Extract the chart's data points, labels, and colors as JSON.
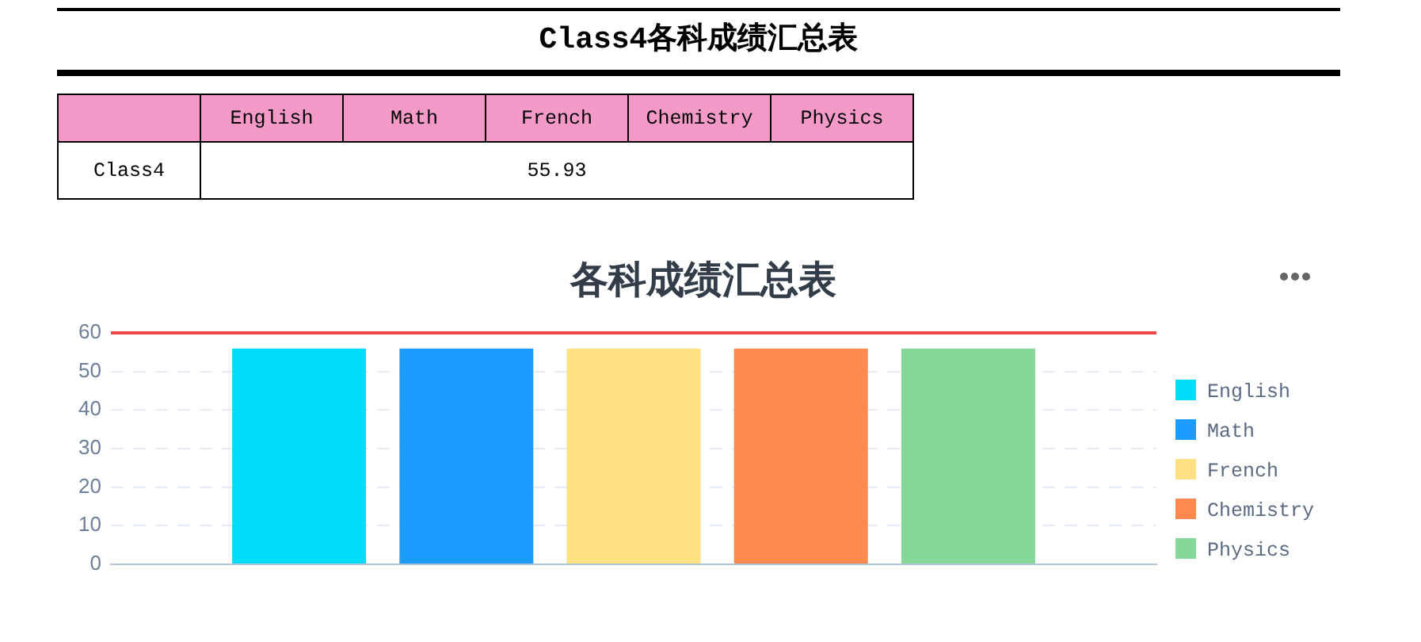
{
  "chart_data": {
    "type": "bar",
    "title": "Class4各科成绩汇总表",
    "subtitle": "各科成绩汇总表",
    "categories": [
      null
    ],
    "series": [
      {
        "name": "English",
        "color": "#00ddf8",
        "values": [
          55.93
        ]
      },
      {
        "name": "Math",
        "color": "#1c9cff",
        "values": [
          55.93
        ]
      },
      {
        "name": "French",
        "color": "#fee182",
        "values": [
          55.93
        ]
      },
      {
        "name": "Chemistry",
        "color": "#ff8a4d",
        "values": [
          55.93
        ]
      },
      {
        "name": "Physics",
        "color": "#85d897",
        "values": [
          55.93
        ]
      }
    ],
    "ylim": [
      0,
      60
    ],
    "yticks": [
      0,
      10,
      20,
      30,
      40,
      50,
      60
    ],
    "grid": "y",
    "legend": "right",
    "tick_labels": "y",
    "annotations": [
      "Class4",
      "55.93"
    ],
    "ref_lines": [
      {
        "axis": "y",
        "value": 60,
        "color": "#f04848"
      }
    ]
  }
}
